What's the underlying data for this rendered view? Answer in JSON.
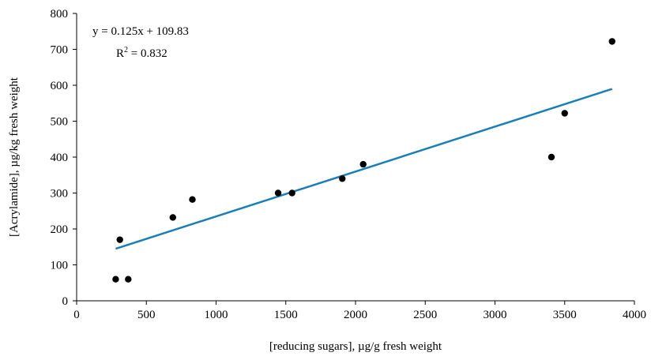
{
  "chart_data": {
    "type": "scatter",
    "xlabel": "[reducing sugars], µg/g fresh weight",
    "ylabel": "[Acrylamide], µg/kg fresh weight",
    "xlim": [
      0,
      4000
    ],
    "ylim": [
      0,
      800
    ],
    "x_ticks": [
      0,
      500,
      1000,
      1500,
      2000,
      2500,
      3000,
      3500,
      4000
    ],
    "y_ticks": [
      0,
      100,
      200,
      300,
      400,
      500,
      600,
      700,
      800
    ],
    "grid": false,
    "legend": "none",
    "series": [
      {
        "points": [
          {
            "x": 280,
            "y": 60
          },
          {
            "x": 310,
            "y": 170
          },
          {
            "x": 370,
            "y": 60
          },
          {
            "x": 690,
            "y": 232
          },
          {
            "x": 830,
            "y": 282
          },
          {
            "x": 1445,
            "y": 300
          },
          {
            "x": 1545,
            "y": 300
          },
          {
            "x": 1905,
            "y": 340
          },
          {
            "x": 2055,
            "y": 380
          },
          {
            "x": 3405,
            "y": 400
          },
          {
            "x": 3500,
            "y": 522
          },
          {
            "x": 3840,
            "y": 722
          }
        ],
        "marker_color": "#000000"
      }
    ],
    "trendline": {
      "slope": 0.125,
      "intercept": 109.83,
      "x_range": [
        280,
        3840
      ],
      "color": "#1a7fb8"
    },
    "annotations": {
      "equation": "y = 0.125x + 109.83",
      "r_squared_prefix": "R",
      "r_squared_exponent": "2",
      "r_squared_value": " = 0.832"
    }
  }
}
